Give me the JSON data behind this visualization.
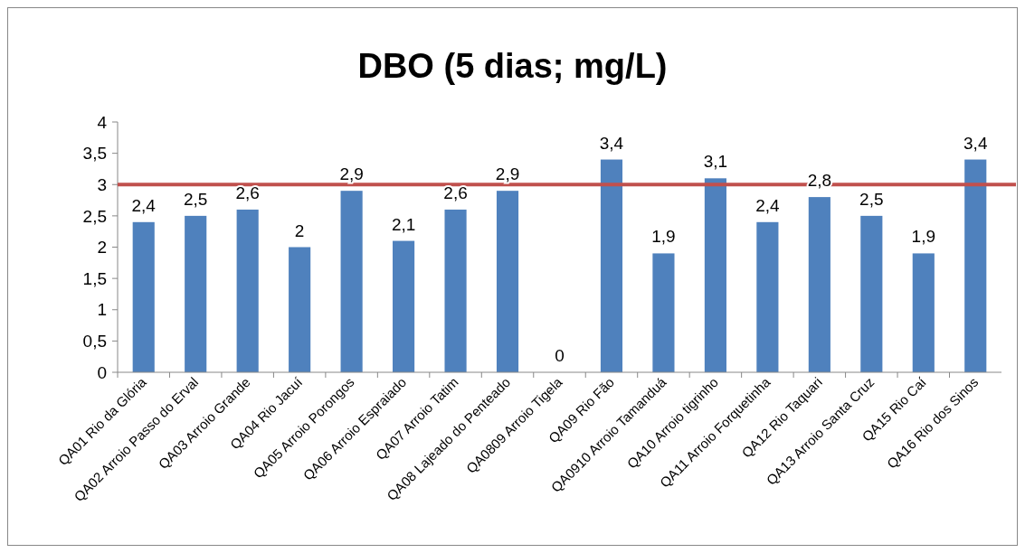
{
  "chart_data": {
    "type": "bar",
    "title": "DBO (5 dias; mg/L)",
    "categories": [
      "QA01 Rio da Glória",
      "QA02 Arroio Passo do Erval",
      "QA03 Arroio Grande",
      "QA04 Rio Jacuí",
      "QA05 Arroio Porongos",
      "QA06 Arroio Espraiado",
      "QA07 Arroio Tatim",
      "QA08 Lajeado do Penteado",
      "QA0809 Arroio Tigela",
      "QA09 Rio Fão",
      "QA0910 Arroio Tamanduá",
      "QA10 Arroio tigrinho",
      "QA11 Arroio Forquetinha",
      "QA12 Rio Taquari",
      "QA13 Arroio Santa Cruz",
      "QA15 Rio Caí",
      "QA16 Rio dos Sinos"
    ],
    "values": [
      2.4,
      2.5,
      2.6,
      2,
      2.9,
      2.1,
      2.6,
      2.9,
      0,
      3.4,
      1.9,
      3.1,
      2.4,
      2.8,
      2.5,
      1.9,
      3.4
    ],
    "value_labels": [
      "2,4",
      "2,5",
      "2,6",
      "2",
      "2,9",
      "2,1",
      "2,6",
      "2,9",
      "0",
      "3,4",
      "1,9",
      "3,1",
      "2,4",
      "2,8",
      "2,5",
      "1,9",
      "3,4"
    ],
    "color": "#4f81bd",
    "ylim": [
      0,
      4
    ],
    "yticks": [
      0,
      {
        "value": 0.5,
        "label": "0,5"
      },
      1,
      {
        "value": 1.5,
        "label": "1,5"
      },
      2,
      {
        "value": 2.5,
        "label": "2,5"
      },
      3,
      {
        "value": 3.5,
        "label": "3,5"
      },
      4
    ],
    "ref_lines": [
      {
        "axis": "y",
        "value": 3,
        "color": "#c0504d"
      }
    ],
    "grid": false
  }
}
